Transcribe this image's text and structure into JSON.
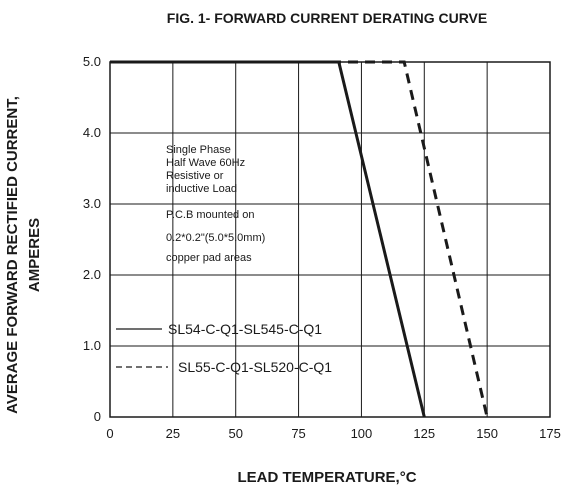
{
  "chart_data": {
    "type": "line",
    "title": "FIG. 1- FORWARD CURRENT DERATING CURVE",
    "xlabel": "LEAD TEMPERATURE,°C",
    "ylabel_line1": "AVERAGE FORWARD RECTIFIED CURRENT,",
    "ylabel_line2": "AMPERES",
    "xlim": [
      0,
      175
    ],
    "ylim": [
      0,
      5
    ],
    "xticks": [
      0,
      25,
      50,
      75,
      100,
      125,
      150,
      175
    ],
    "yticks": [
      {
        "value": 0,
        "label": "0"
      },
      {
        "value": 1,
        "label": "1.0"
      },
      {
        "value": 2,
        "label": "2.0"
      },
      {
        "value": 3,
        "label": "3.0"
      },
      {
        "value": 4,
        "label": "4.0"
      },
      {
        "value": 5,
        "label": "5.0"
      }
    ],
    "grid": true,
    "series": [
      {
        "name": "SL54-C-Q1-SL545-C-Q1",
        "style": "solid",
        "x": [
          0,
          91,
          125
        ],
        "y": [
          5.0,
          5.0,
          0
        ]
      },
      {
        "name": "SL55-C-Q1-SL520-C-Q1",
        "style": "dashed",
        "x": [
          0,
          117,
          150
        ],
        "y": [
          5.0,
          5.0,
          0
        ]
      }
    ],
    "notes": [
      "Single Phase",
      "Half Wave 60Hz",
      "Resistive or",
      "inductive Load",
      "P.C.B mounted on",
      "0.2*0.2\"(5.0*5.0mm)",
      "copper pad areas"
    ]
  }
}
